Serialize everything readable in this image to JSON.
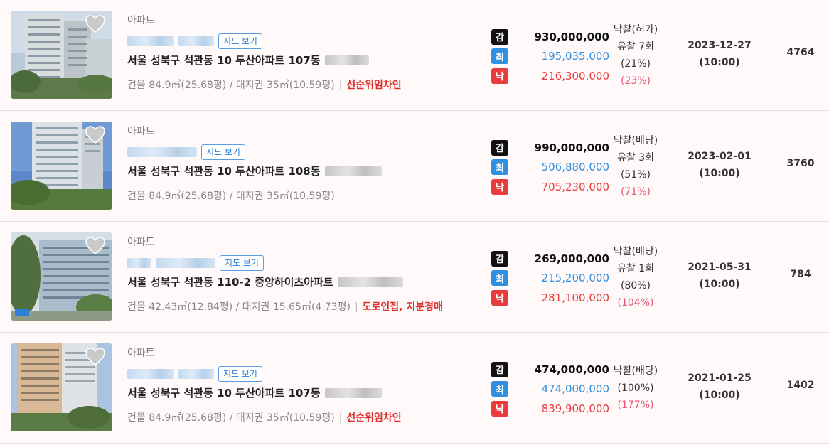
{
  "listings": [
    {
      "type": "아파트",
      "map_label": "지도 보기",
      "title": "서울 성북구 석관동 10 두산아파트 107동",
      "detail": "건물 84.9㎡(25.68평) / 대지권 35㎡(10.59평)",
      "note": "선순위임차인",
      "appraisal_badge": "감",
      "appraisal": "930,000,000",
      "minimum_badge": "최",
      "minimum": "195,035,000",
      "winning_badge": "낙",
      "winning": "216,300,000",
      "result": "낙찰(허가)",
      "fail_count": "유찰 7회",
      "min_pct": "(21%)",
      "win_pct": "(23%)",
      "date": "2023-12-27",
      "time": "(10:00)",
      "views": "4764"
    },
    {
      "type": "아파트",
      "map_label": "지도 보기",
      "title": "서울 성북구 석관동 10 두산아파트 108동",
      "detail": "건물 84.9㎡(25.68평) / 대지권 35㎡(10.59평)",
      "note": "",
      "appraisal_badge": "감",
      "appraisal": "990,000,000",
      "minimum_badge": "최",
      "minimum": "506,880,000",
      "winning_badge": "낙",
      "winning": "705,230,000",
      "result": "낙찰(배당)",
      "fail_count": "유찰 3회",
      "min_pct": "(51%)",
      "win_pct": "(71%)",
      "date": "2023-02-01",
      "time": "(10:00)",
      "views": "3760"
    },
    {
      "type": "아파트",
      "map_label": "지도 보기",
      "title": "서울 성북구 석관동 110-2 중앙하이츠아파트",
      "detail": "건물 42.43㎡(12.84평) / 대지권 15.65㎡(4.73평)",
      "note": "도로인접, 지분경매",
      "appraisal_badge": "감",
      "appraisal": "269,000,000",
      "minimum_badge": "최",
      "minimum": "215,200,000",
      "winning_badge": "낙",
      "winning": "281,100,000",
      "result": "낙찰(배당)",
      "fail_count": "유찰 1회",
      "min_pct": "(80%)",
      "win_pct": "(104%)",
      "date": "2021-05-31",
      "time": "(10:00)",
      "views": "784"
    },
    {
      "type": "아파트",
      "map_label": "지도 보기",
      "title": "서울 성북구 석관동 10 두산아파트 107동",
      "detail": "건물 84.9㎡(25.68평) / 대지권 35㎡(10.59평)",
      "note": "선순위임차인",
      "appraisal_badge": "감",
      "appraisal": "474,000,000",
      "minimum_badge": "최",
      "minimum": "474,000,000",
      "winning_badge": "낙",
      "winning": "839,900,000",
      "result": "낙찰(배당)",
      "fail_count": "",
      "min_pct": "(100%)",
      "win_pct": "(177%)",
      "date": "2021-01-25",
      "time": "(10:00)",
      "views": "1402"
    }
  ],
  "colors": {
    "appraisal": "#111111",
    "minimum": "#2f8fe0",
    "winning": "#e83b3b",
    "pct": "#e8547a",
    "note": "#e0302c"
  }
}
